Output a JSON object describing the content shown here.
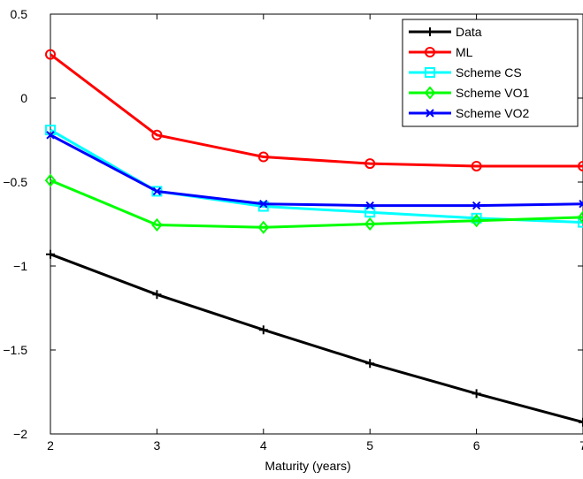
{
  "chart_data": {
    "type": "line",
    "title": "",
    "xlabel": "Maturity (years)",
    "ylabel": "",
    "xlim": [
      2,
      7
    ],
    "ylim": [
      -2,
      0.5
    ],
    "x": [
      2,
      3,
      4,
      5,
      6,
      7
    ],
    "xticks": [
      "2",
      "3",
      "4",
      "5",
      "6",
      "7"
    ],
    "yticks": [
      "0.5",
      "0",
      "−0.5",
      "−1",
      "−1.5",
      "−2"
    ],
    "ytick_values": [
      0.5,
      0,
      -0.5,
      -1,
      -1.5,
      -2
    ],
    "grid": false,
    "legend_position": "top-right",
    "series": [
      {
        "name": "Data",
        "color": "#000000",
        "marker": "plus",
        "values": [
          -0.93,
          -1.17,
          -1.38,
          -1.58,
          -1.76,
          -1.93
        ]
      },
      {
        "name": "ML",
        "color": "#ff0000",
        "marker": "circle",
        "values": [
          0.26,
          -0.22,
          -0.35,
          -0.39,
          -0.405,
          -0.405
        ]
      },
      {
        "name": "Scheme CS",
        "color": "#00ffff",
        "marker": "square",
        "values": [
          -0.19,
          -0.555,
          -0.645,
          -0.68,
          -0.715,
          -0.74
        ]
      },
      {
        "name": "Scheme VO1",
        "color": "#00ff00",
        "marker": "diamond",
        "values": [
          -0.49,
          -0.755,
          -0.77,
          -0.75,
          -0.73,
          -0.71
        ]
      },
      {
        "name": "Scheme VO2",
        "color": "#0000ff",
        "marker": "x",
        "values": [
          -0.22,
          -0.555,
          -0.63,
          -0.64,
          -0.64,
          -0.63
        ]
      }
    ]
  }
}
